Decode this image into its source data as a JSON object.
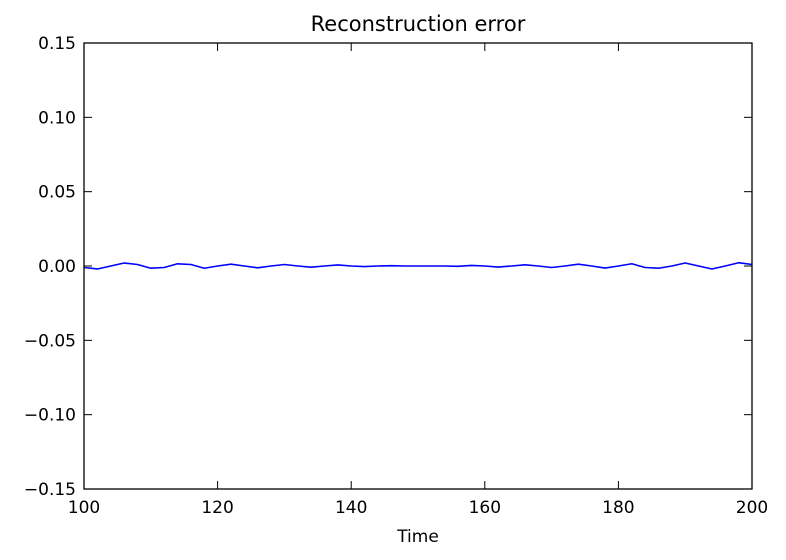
{
  "chart_data": {
    "type": "line",
    "title": "Reconstruction error",
    "xlabel": "Time",
    "ylabel": "",
    "xlim": [
      100,
      200
    ],
    "ylim": [
      -0.15,
      0.15
    ],
    "x_ticks": [
      100,
      120,
      140,
      160,
      180,
      200
    ],
    "x_tick_labels": [
      "100",
      "120",
      "140",
      "160",
      "180",
      "200"
    ],
    "y_ticks": [
      0.15,
      0.1,
      0.05,
      0.0,
      -0.05,
      -0.1,
      -0.15
    ],
    "y_tick_labels": [
      "0.15",
      "0.10",
      "0.05",
      "0.00",
      "−0.05",
      "−0.10",
      "−0.15"
    ],
    "grid": false,
    "series": [
      {
        "color": "#0000ff",
        "x": [
          100,
          102,
          104,
          106,
          108,
          110,
          112,
          114,
          116,
          118,
          120,
          122,
          124,
          126,
          128,
          130,
          132,
          134,
          136,
          138,
          140,
          142,
          144,
          146,
          148,
          150,
          152,
          154,
          156,
          158,
          160,
          162,
          164,
          166,
          168,
          170,
          172,
          174,
          176,
          178,
          180,
          182,
          184,
          186,
          188,
          190,
          192,
          194,
          196,
          198,
          200
        ],
        "y": [
          -0.001,
          -0.002,
          0.0,
          0.002,
          0.001,
          -0.0015,
          -0.001,
          0.0015,
          0.001,
          -0.0015,
          0.0,
          0.0012,
          0.0,
          -0.0012,
          0.0,
          0.001,
          0.0,
          -0.0008,
          0.0,
          0.0007,
          0.0,
          -0.0004,
          0.0,
          0.0002,
          0.0,
          0.0,
          0.0,
          0.0,
          -0.0002,
          0.0004,
          0.0,
          -0.0007,
          0.0,
          0.0008,
          0.0,
          -0.001,
          0.0,
          0.0012,
          0.0,
          -0.0014,
          0.0,
          0.0015,
          -0.001,
          -0.0015,
          0.0,
          0.002,
          0.0,
          -0.002,
          0.0,
          0.0022,
          0.001
        ]
      }
    ]
  }
}
